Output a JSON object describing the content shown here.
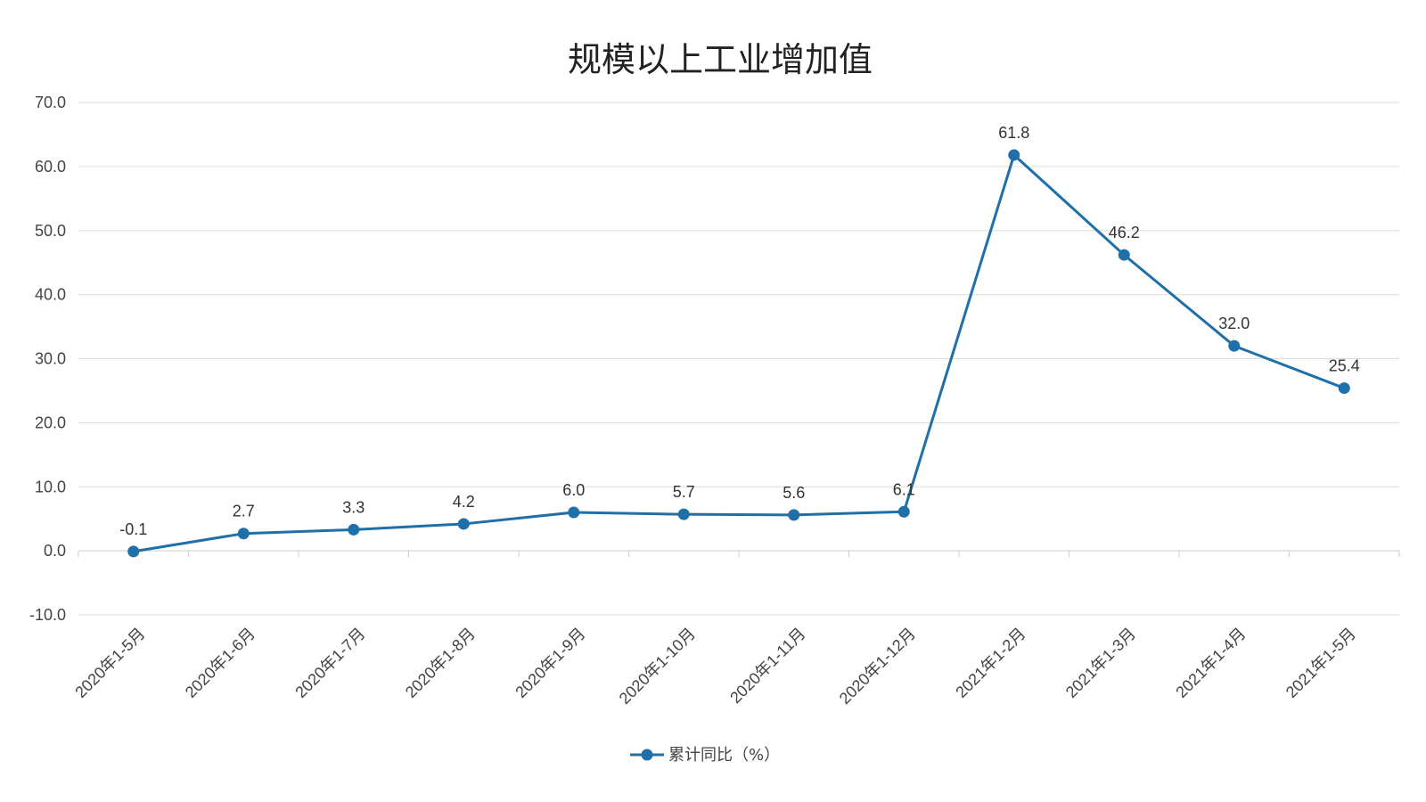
{
  "chart_data": {
    "type": "line",
    "title": "规模以上工业增加值",
    "categories": [
      "2020年1-5月",
      "2020年1-6月",
      "2020年1-7月",
      "2020年1-8月",
      "2020年1-9月",
      "2020年1-10月",
      "2020年1-11月",
      "2020年1-12月",
      "2021年1-2月",
      "2021年1-3月",
      "2021年1-4月",
      "2021年1-5月"
    ],
    "series": [
      {
        "name": "累计同比（%）",
        "values": [
          -0.1,
          2.7,
          3.3,
          4.2,
          6.0,
          5.7,
          5.6,
          6.1,
          61.8,
          46.2,
          32.0,
          25.4
        ],
        "labels": [
          "-0.1",
          "2.7",
          "3.3",
          "4.2",
          "6.0",
          "5.7",
          "5.6",
          "6.1",
          "61.8",
          "46.2",
          "32.0",
          "25.4"
        ],
        "color": "#1f6fa8"
      }
    ],
    "ylim": [
      -10,
      70
    ],
    "yticks": [
      "-10.0",
      "0.0",
      "10.0",
      "20.0",
      "30.0",
      "40.0",
      "50.0",
      "60.0",
      "70.0"
    ],
    "xlabel": "",
    "ylabel": "",
    "grid": true,
    "legend_position": "bottom"
  }
}
